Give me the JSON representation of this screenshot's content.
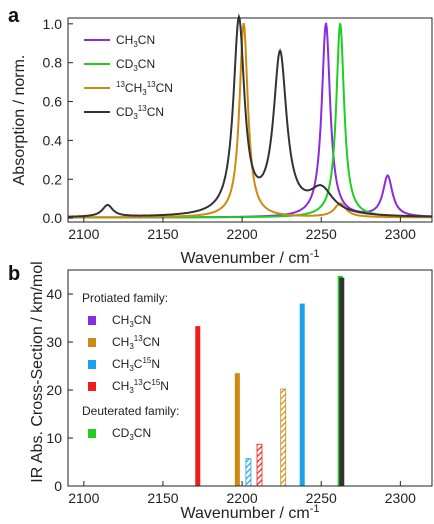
{
  "panels": {
    "a": {
      "letter": "a",
      "ylabel": "Absorption / norm.",
      "xlabel": "Wavenumber / cm",
      "xlabel_sup": "-1"
    },
    "b": {
      "letter": "b",
      "ylabel": "IR Abs. Cross-Section / km/mol",
      "xlabel": "Wavenumber / cm",
      "xlabel_sup": "-1"
    }
  },
  "legend_a": [
    {
      "parts": [
        [
          "CH",
          "n"
        ],
        [
          "3",
          "sub"
        ],
        [
          "CN",
          "n"
        ]
      ],
      "color": "#8a2be2"
    },
    {
      "parts": [
        [
          "CD",
          "n"
        ],
        [
          "3",
          "sub"
        ],
        [
          "CN",
          "n"
        ]
      ],
      "color": "#22cc22"
    },
    {
      "parts": [
        [
          "13",
          "sup"
        ],
        [
          "CH",
          "n"
        ],
        [
          "3",
          "sub"
        ],
        [
          "13",
          "sup"
        ],
        [
          "CN",
          "n"
        ]
      ],
      "color": "#cc8a10"
    },
    {
      "parts": [
        [
          "CD",
          "n"
        ],
        [
          "3",
          "sub"
        ],
        [
          "13",
          "sup"
        ],
        [
          "CN",
          "n"
        ]
      ],
      "color": "#333333"
    }
  ],
  "legend_b": {
    "header1": "Protiated family:",
    "header2": "Deuterated family:",
    "items1": [
      {
        "parts": [
          [
            "CH",
            "n"
          ],
          [
            "3",
            "sub"
          ],
          [
            "CN",
            "n"
          ]
        ],
        "color": "#8a2be2"
      },
      {
        "parts": [
          [
            "CH",
            "n"
          ],
          [
            "3",
            "sub"
          ],
          [
            "13",
            "sup"
          ],
          [
            "CN",
            "n"
          ]
        ],
        "color": "#cc8a10"
      },
      {
        "parts": [
          [
            "CH",
            "n"
          ],
          [
            "3",
            "sub"
          ],
          [
            "C",
            "n"
          ],
          [
            "15",
            "sup"
          ],
          [
            "N",
            "n"
          ]
        ],
        "color": "#1aa3e8"
      },
      {
        "parts": [
          [
            "CH",
            "n"
          ],
          [
            "3",
            "sub"
          ],
          [
            "13",
            "sup"
          ],
          [
            "C",
            "n"
          ],
          [
            "15",
            "sup"
          ],
          [
            "N",
            "n"
          ]
        ],
        "color": "#ee1c1c"
      }
    ],
    "items2": [
      {
        "parts": [
          [
            "CD",
            "n"
          ],
          [
            "3",
            "sub"
          ],
          [
            "CN",
            "n"
          ]
        ],
        "color": "#22cc22"
      }
    ]
  },
  "chart_data": [
    {
      "type": "line",
      "panel": "a",
      "xlim": [
        2090,
        2320
      ],
      "ylim": [
        -0.02,
        1.03
      ],
      "xticks": [
        2100,
        2150,
        2200,
        2250,
        2300
      ],
      "yticks": [
        0.0,
        0.2,
        0.4,
        0.6,
        0.8,
        1.0
      ],
      "series": [
        {
          "name": "CH3CN",
          "color": "#8a2be2",
          "peaks": [
            [
              2253,
              1.0,
              3.2
            ],
            [
              2292,
              0.21,
              3.6
            ]
          ]
        },
        {
          "name": "CD3CN",
          "color": "#22cc22",
          "peaks": [
            [
              2262,
              1.0,
              3.0
            ]
          ]
        },
        {
          "name": "13CH313CN",
          "color": "#cc8a10",
          "peaks": [
            [
              2201,
              1.0,
              3.2
            ],
            [
              2262,
              0.07,
              4.5
            ]
          ]
        },
        {
          "name": "CD313CN",
          "color": "#333333",
          "peaks": [
            [
              2115,
              0.06,
              4.0
            ],
            [
              2198,
              1.0,
              4.2
            ],
            [
              2224,
              0.82,
              5.0
            ],
            [
              2250,
              0.13,
              9.0
            ]
          ]
        }
      ]
    },
    {
      "type": "bar",
      "panel": "b",
      "xlim": [
        2090,
        2320
      ],
      "ylim": [
        0,
        45
      ],
      "xticks": [
        2100,
        2150,
        2200,
        2250,
        2300
      ],
      "yticks": [
        0,
        10,
        20,
        30,
        40
      ],
      "bars": [
        {
          "x": 2172,
          "value": 33.3,
          "color": "#ee1c1c",
          "hatched": false
        },
        {
          "x": 2197,
          "value": 23.5,
          "color": "#cc8a10",
          "hatched": false
        },
        {
          "x": 2204,
          "value": 5.7,
          "color": "#1aa3e8",
          "hatched": true
        },
        {
          "x": 2211,
          "value": 8.7,
          "color": "#ee1c1c",
          "hatched": true
        },
        {
          "x": 2226,
          "value": 20.2,
          "color": "#cc8a10",
          "hatched": true
        },
        {
          "x": 2238,
          "value": 38.0,
          "color": "#1aa3e8",
          "hatched": false
        },
        {
          "x": 2262,
          "value": 43.8,
          "color": "#22cc22",
          "hatched": false
        },
        {
          "x": 2263,
          "value": 43.4,
          "color": "#333333",
          "hatched": false
        }
      ]
    }
  ]
}
